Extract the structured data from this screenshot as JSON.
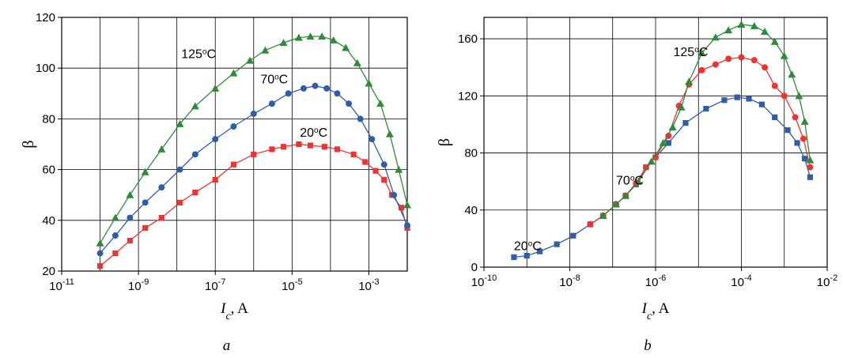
{
  "chart_data": [
    {
      "type": "scatter",
      "panel_label": "a",
      "ylabel": "β",
      "xlabel_var": "I",
      "xlabel_sub": "c",
      "xlabel_unit": ", A",
      "xscale": "log",
      "xlim": [
        1e-11,
        0.01
      ],
      "ylim": [
        20,
        120
      ],
      "grid": true,
      "xticks": [
        {
          "value": 1e-11,
          "base": "10",
          "exp": "-11"
        },
        {
          "value": 1e-09,
          "base": "10",
          "exp": "-9"
        },
        {
          "value": 1e-07,
          "base": "10",
          "exp": "-7"
        },
        {
          "value": 1e-05,
          "base": "10",
          "exp": "-5"
        },
        {
          "value": 0.001,
          "base": "10",
          "exp": "-3"
        }
      ],
      "xgrid_decades": [
        -11,
        -10,
        -9,
        -8,
        -7,
        -6,
        -5,
        -4,
        -3,
        -2
      ],
      "yticks": [
        20,
        40,
        60,
        80,
        100,
        120
      ],
      "series": [
        {
          "color": "#ee3333",
          "marker": "square",
          "annotation": {
            "value": "20",
            "degree": "o",
            "unit": "C",
            "x": 1.6e-05,
            "y": 73
          },
          "points": [
            [
              1e-10,
              22
            ],
            [
              2.5e-10,
              27
            ],
            [
              6e-10,
              32
            ],
            [
              1.5e-09,
              37
            ],
            [
              4e-09,
              41
            ],
            [
              1.2e-08,
              47
            ],
            [
              3e-08,
              51
            ],
            [
              1e-07,
              56
            ],
            [
              3e-07,
              62
            ],
            [
              1e-06,
              66
            ],
            [
              3e-06,
              68
            ],
            [
              6e-06,
              69
            ],
            [
              1.5e-05,
              70
            ],
            [
              3e-05,
              69.5
            ],
            [
              7e-05,
              69
            ],
            [
              0.00015,
              68
            ],
            [
              0.0004,
              66
            ],
            [
              0.0008,
              63
            ],
            [
              0.0015,
              59.5
            ],
            [
              0.0025,
              56
            ],
            [
              0.004,
              50
            ],
            [
              0.007,
              45
            ],
            [
              0.01,
              37
            ]
          ]
        },
        {
          "color": "#2e5ea8",
          "marker": "circle",
          "annotation": {
            "value": "70",
            "degree": "o",
            "unit": "C",
            "x": 1.5e-06,
            "y": 94
          },
          "points": [
            [
              1e-10,
              27
            ],
            [
              2.5e-10,
              34
            ],
            [
              6e-10,
              41
            ],
            [
              1.5e-09,
              47
            ],
            [
              4e-09,
              53
            ],
            [
              1.2e-08,
              60
            ],
            [
              3e-08,
              66
            ],
            [
              1e-07,
              72
            ],
            [
              3e-07,
              77
            ],
            [
              1e-06,
              82
            ],
            [
              3e-06,
              86
            ],
            [
              8e-06,
              90
            ],
            [
              2e-05,
              92
            ],
            [
              4e-05,
              93
            ],
            [
              8e-05,
              92
            ],
            [
              0.00015,
              90
            ],
            [
              0.0003,
              86
            ],
            [
              0.0006,
              80
            ],
            [
              0.0012,
              72
            ],
            [
              0.0025,
              62
            ],
            [
              0.0045,
              50
            ],
            [
              0.01,
              38
            ]
          ]
        },
        {
          "color": "#2e8b3a",
          "marker": "triangle",
          "annotation": {
            "value": "125",
            "degree": "o",
            "unit": "C",
            "x": 1.3e-08,
            "y": 104
          },
          "points": [
            [
              1e-10,
              31
            ],
            [
              2.5e-10,
              41
            ],
            [
              6e-10,
              50
            ],
            [
              1.5e-09,
              59
            ],
            [
              4e-09,
              68
            ],
            [
              1.2e-08,
              78
            ],
            [
              3e-08,
              85
            ],
            [
              1e-07,
              92
            ],
            [
              3e-07,
              98
            ],
            [
              8e-07,
              103
            ],
            [
              2e-06,
              107
            ],
            [
              6e-06,
              110
            ],
            [
              1.5e-05,
              112
            ],
            [
              3e-05,
              112.5
            ],
            [
              6e-05,
              112.5
            ],
            [
              0.00012,
              111
            ],
            [
              0.00025,
              108
            ],
            [
              0.0005,
              102
            ],
            [
              0.001,
              94
            ],
            [
              0.002,
              86
            ],
            [
              0.0035,
              74
            ],
            [
              0.006,
              60
            ],
            [
              0.01,
              46
            ]
          ]
        }
      ]
    },
    {
      "type": "scatter",
      "panel_label": "b",
      "ylabel": "β",
      "xlabel_var": "I",
      "xlabel_sub": "c",
      "xlabel_unit": ", A",
      "xscale": "log",
      "xlim": [
        1e-10,
        0.01
      ],
      "ylim": [
        0,
        175
      ],
      "grid": true,
      "xticks": [
        {
          "value": 1e-10,
          "base": "10",
          "exp": "-10"
        },
        {
          "value": 1e-08,
          "base": "10",
          "exp": "-8"
        },
        {
          "value": 1e-06,
          "base": "10",
          "exp": "-6"
        },
        {
          "value": 0.0001,
          "base": "10",
          "exp": "-4"
        },
        {
          "value": 0.01,
          "base": "10",
          "exp": "-2"
        }
      ],
      "xgrid_decades": [
        -10,
        -9,
        -8,
        -7,
        -6,
        -5,
        -4,
        -3,
        -2
      ],
      "yticks": [
        0,
        40,
        80,
        120,
        160
      ],
      "series": [
        {
          "color": "#2e5ea8",
          "marker": "square",
          "annotation": {
            "value": "20",
            "degree": "o",
            "unit": "C",
            "x": 5e-10,
            "y": 12
          },
          "points": [
            [
              5e-10,
              7
            ],
            [
              1e-09,
              8
            ],
            [
              2e-09,
              11
            ],
            [
              5e-09,
              16
            ],
            [
              1.2e-08,
              22
            ],
            [
              3e-08,
              30
            ],
            [
              6e-08,
              36
            ],
            [
              1.2e-07,
              44
            ],
            [
              2e-07,
              50
            ],
            [
              3.5e-07,
              58
            ],
            [
              6e-07,
              70
            ],
            [
              1e-06,
              77
            ],
            [
              2e-06,
              87
            ],
            [
              5e-06,
              101
            ],
            [
              1.5e-05,
              111
            ],
            [
              4e-05,
              117
            ],
            [
              8e-05,
              119
            ],
            [
              0.00015,
              118
            ],
            [
              0.0003,
              114
            ],
            [
              0.0006,
              105
            ],
            [
              0.0012,
              96
            ],
            [
              0.002,
              87
            ],
            [
              0.003,
              76
            ],
            [
              0.004,
              63
            ]
          ]
        },
        {
          "color": "#ee3333",
          "marker": "circle",
          "annotation": null,
          "points": [
            [
              3e-08,
              30
            ],
            [
              6e-08,
              36
            ],
            [
              1.2e-07,
              44
            ],
            [
              2e-07,
              50
            ],
            [
              3.5e-07,
              59
            ],
            [
              6e-07,
              70
            ],
            [
              1e-06,
              77
            ],
            [
              2e-06,
              92
            ],
            [
              3.5e-06,
              113
            ],
            [
              6e-06,
              128
            ],
            [
              1.2e-05,
              138
            ],
            [
              2.5e-05,
              142
            ],
            [
              5e-05,
              146
            ],
            [
              0.0001,
              147
            ],
            [
              0.0002,
              145
            ],
            [
              0.00035,
              140
            ],
            [
              0.0006,
              127
            ],
            [
              0.001,
              120
            ],
            [
              0.0018,
              105
            ],
            [
              0.0028,
              90
            ],
            [
              0.004,
              70
            ]
          ]
        },
        {
          "color": "#2e8b3a",
          "marker": "triangle",
          "annotation": {
            "value": "125",
            "degree": "o",
            "unit": "C",
            "x": 2.6e-06,
            "y": 148
          },
          "points": [
            [
              6e-08,
              36
            ],
            [
              1.2e-07,
              44
            ],
            [
              2e-07,
              50
            ],
            [
              4e-07,
              60
            ],
            [
              8e-07,
              74
            ],
            [
              1.5e-06,
              87
            ],
            [
              2.5e-06,
              98
            ],
            [
              4e-06,
              112
            ],
            [
              6e-06,
              130
            ],
            [
              1.2e-05,
              150
            ],
            [
              2.5e-05,
              161
            ],
            [
              5e-05,
              166
            ],
            [
              0.0001,
              170
            ],
            [
              0.0002,
              169
            ],
            [
              0.00035,
              165
            ],
            [
              0.0006,
              158
            ],
            [
              0.001,
              148
            ],
            [
              0.0015,
              135
            ],
            [
              0.0022,
              120
            ],
            [
              0.003,
              102
            ],
            [
              0.004,
              75
            ]
          ]
        }
      ],
      "extra_annotations": [
        {
          "value": "70",
          "degree": "o",
          "unit": "C",
          "x": 1.2e-07,
          "y": 58
        }
      ]
    }
  ]
}
